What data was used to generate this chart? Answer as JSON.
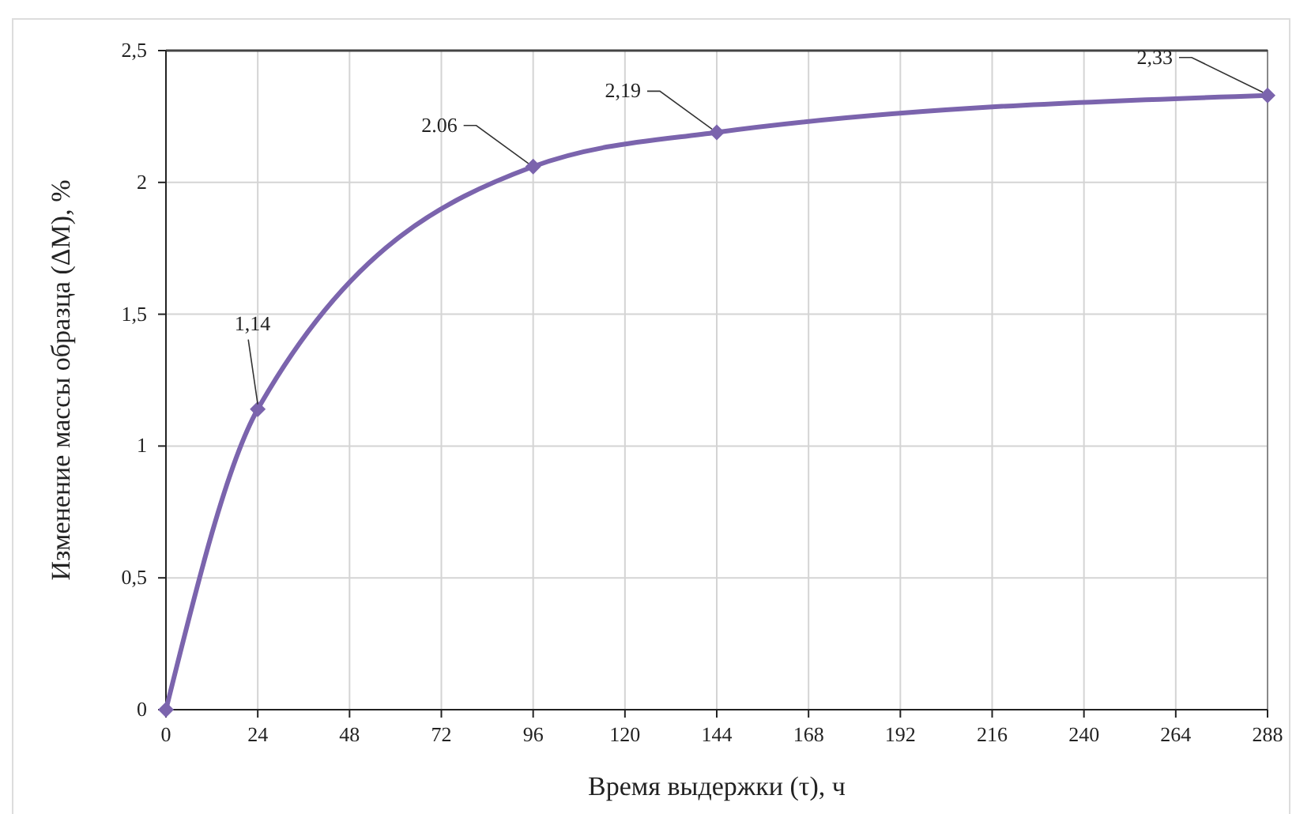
{
  "chart_data": {
    "type": "line",
    "xlabel": "Время выдержки (τ), ч",
    "ylabel": "Изменение массы образца (ΔM), %",
    "x": [
      0,
      24,
      96,
      144,
      288
    ],
    "series": [
      {
        "color": "#7b64ad",
        "values": [
          0,
          1.14,
          2.06,
          2.19,
          2.33
        ],
        "value_labels": [
          null,
          "1,14",
          "2.06",
          "2,19",
          "2,33"
        ]
      }
    ],
    "xlim": [
      0,
      288
    ],
    "xticks": [
      0,
      24,
      48,
      72,
      96,
      120,
      144,
      168,
      192,
      216,
      240,
      264,
      288
    ],
    "ylim": [
      0,
      2.5
    ],
    "yticks": [
      {
        "value": 0,
        "label": "0"
      },
      {
        "value": 0.5,
        "label": "0,5"
      },
      {
        "value": 1,
        "label": "1"
      },
      {
        "value": 1.5,
        "label": "1,5"
      },
      {
        "value": 2,
        "label": "2"
      },
      {
        "value": 2.5,
        "label": "2,5"
      }
    ],
    "grid": true,
    "marker": "diamond",
    "line_style": "solid"
  }
}
